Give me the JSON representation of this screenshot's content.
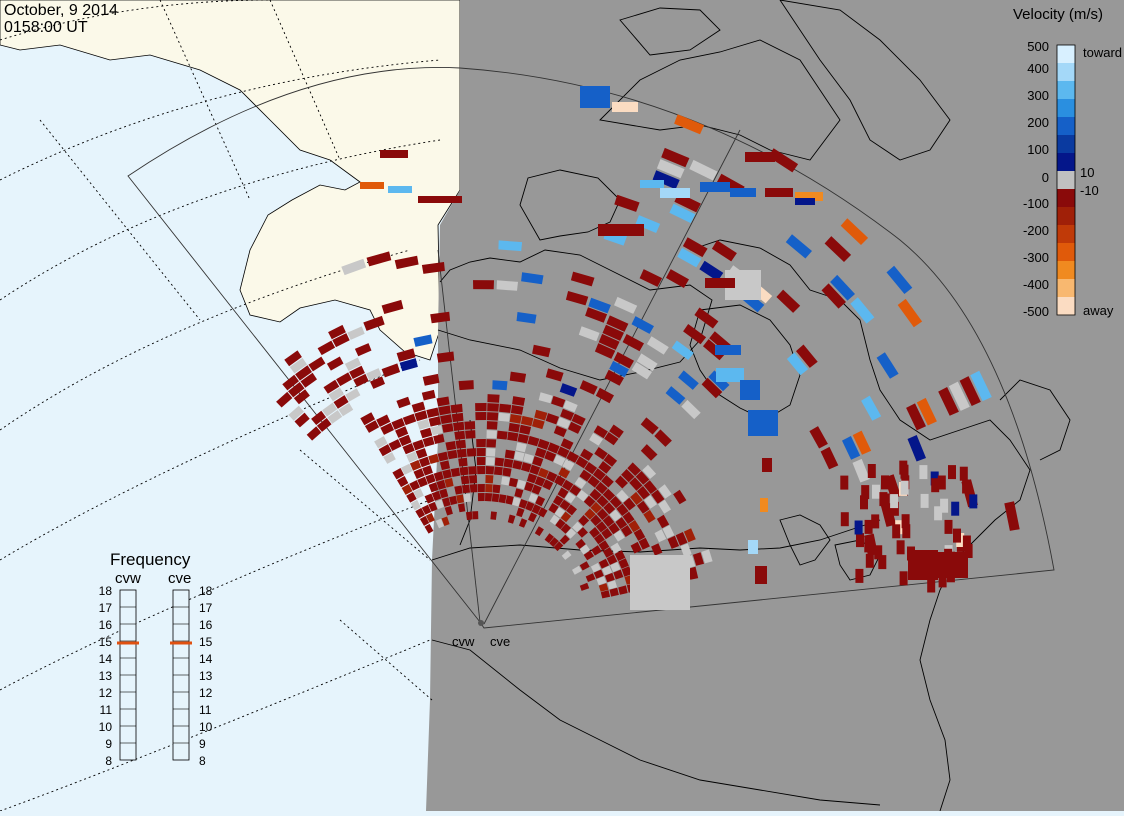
{
  "timestamp": {
    "date": "October, 9 2014",
    "time": "0158:00 UT"
  },
  "radars": {
    "west": "cvw",
    "east": "cve"
  },
  "colorbar": {
    "title": "Velocity (m/s)",
    "ticks": [
      "500",
      "400",
      "300",
      "200",
      "100",
      "10",
      "0",
      "-10",
      "-100",
      "-200",
      "-300",
      "-400",
      "-500"
    ],
    "top_note": "toward",
    "bottom_note": "away",
    "colors": [
      "#d8f0ff",
      "#a4d8f8",
      "#5cb8ef",
      "#2a8fe0",
      "#1560c8",
      "#0a3aa0",
      "#04168a",
      "#c0c0c0",
      "#8a0a0a",
      "#a02008",
      "#c03a08",
      "#e05a0a",
      "#f08a20",
      "#f8b870",
      "#fbdcc2"
    ]
  },
  "frequency": {
    "title": "Frequency",
    "units_scale": [
      "18",
      "17",
      "16",
      "15",
      "14",
      "13",
      "12",
      "11",
      "10",
      "9",
      "8"
    ],
    "cvw_value": 15,
    "cve_value": 15
  },
  "map_colors": {
    "ocean_day": "#e6f4fc",
    "land_day": "#fbf9e9",
    "night": "#989898",
    "gray_scatter": "#c8c8c8",
    "marker": "#e05010"
  }
}
